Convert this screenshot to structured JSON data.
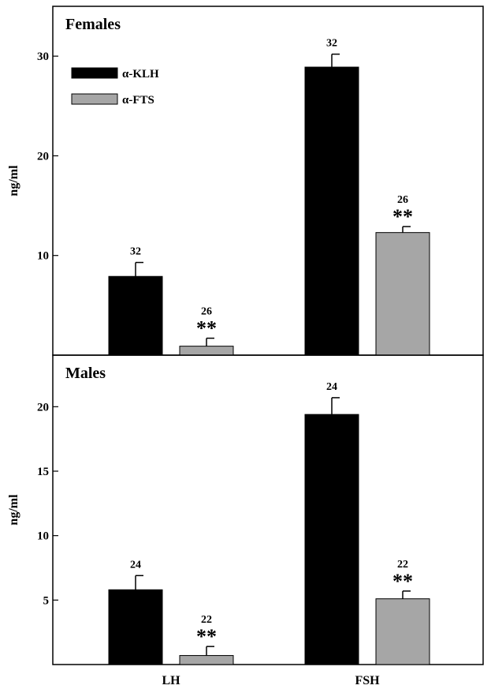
{
  "chart_data": [
    {
      "type": "bar",
      "title": "Females",
      "ylabel": "ng/ml",
      "xlabel": "",
      "categories": [
        "LH",
        "FSH"
      ],
      "ylim": [
        0,
        35
      ],
      "yticks": [
        10,
        20,
        30
      ],
      "grid": false,
      "legend": {
        "placement": "top-left"
      },
      "series": [
        {
          "name": "α-KLH",
          "color": "#000000",
          "values": [
            7.9,
            28.9
          ],
          "errors": [
            1.4,
            1.3
          ],
          "n_labels": [
            "32",
            "32"
          ],
          "significance": [
            "",
            ""
          ]
        },
        {
          "name": "α-FTS",
          "color": "#a6a6a6",
          "values": [
            0.9,
            12.3
          ],
          "errors": [
            0.8,
            0.6
          ],
          "n_labels": [
            "26",
            "26"
          ],
          "significance": [
            "**",
            "**"
          ]
        }
      ]
    },
    {
      "type": "bar",
      "title": "Males",
      "ylabel": "ng/ml",
      "xlabel": "",
      "categories": [
        "LH",
        "FSH"
      ],
      "ylim": [
        0,
        24
      ],
      "yticks": [
        5,
        10,
        15,
        20
      ],
      "grid": false,
      "series": [
        {
          "name": "α-KLH",
          "color": "#000000",
          "values": [
            5.8,
            19.4
          ],
          "errors": [
            1.1,
            1.3
          ],
          "n_labels": [
            "24",
            "24"
          ],
          "significance": [
            "",
            ""
          ]
        },
        {
          "name": "α-FTS",
          "color": "#a6a6a6",
          "values": [
            0.7,
            5.1
          ],
          "errors": [
            0.7,
            0.6
          ],
          "n_labels": [
            "22",
            "22"
          ],
          "significance": [
            "**",
            "**"
          ]
        }
      ]
    }
  ]
}
